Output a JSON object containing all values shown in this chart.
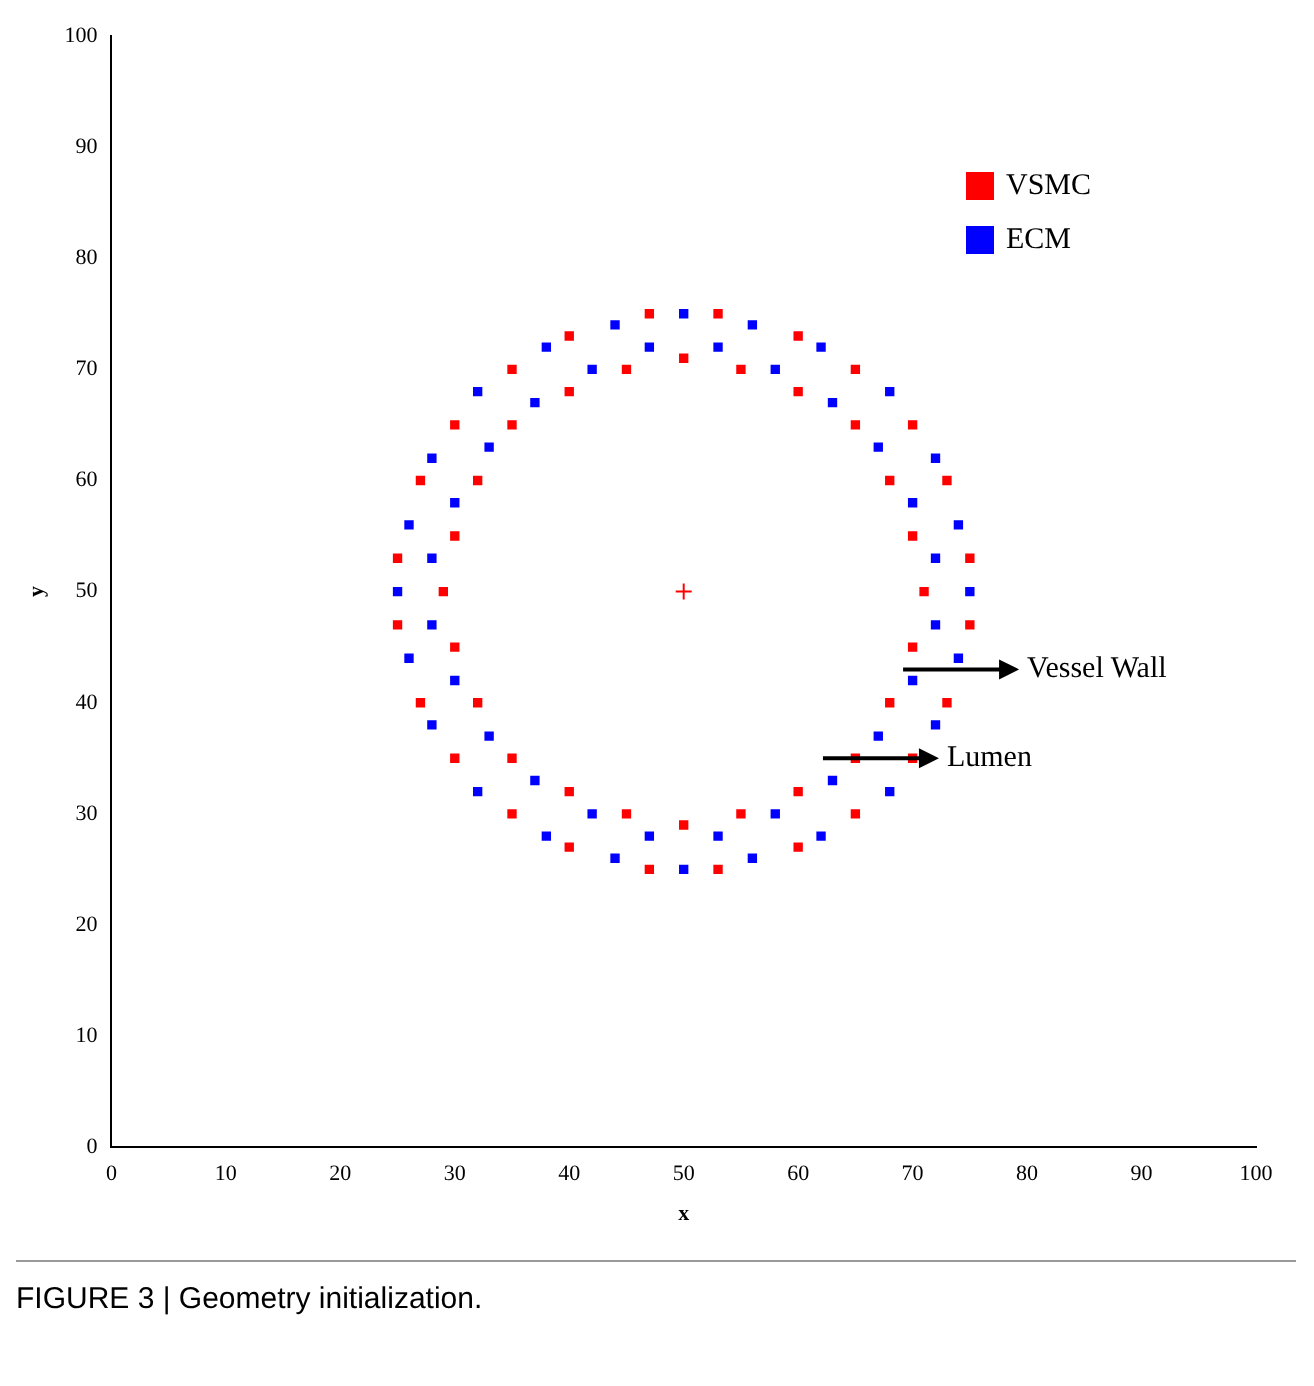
{
  "chart_data": {
    "type": "scatter",
    "xlabel": "x",
    "ylabel": "y",
    "xlim": [
      0,
      100
    ],
    "ylim": [
      0,
      100
    ],
    "xticks": [
      0,
      10,
      20,
      30,
      40,
      50,
      60,
      70,
      80,
      90,
      100
    ],
    "yticks": [
      0,
      10,
      20,
      30,
      40,
      50,
      60,
      70,
      80,
      90,
      100
    ],
    "grid": false,
    "legend": "top right",
    "marker": "square",
    "series": [
      {
        "name": "VSMC",
        "color": "#ff0000",
        "x": [
          71,
          70,
          68,
          65,
          60,
          55,
          50,
          45,
          40,
          35,
          32,
          30,
          29,
          30,
          32,
          35,
          40,
          45,
          50,
          55,
          60,
          65,
          68,
          70,
          75,
          73,
          70,
          65,
          60,
          53,
          47,
          40,
          35,
          30,
          27,
          25,
          25,
          27,
          30,
          35,
          40,
          47,
          53,
          60,
          65,
          70,
          73,
          75
        ],
        "values": [
          50,
          55,
          60,
          65,
          68,
          70,
          71,
          70,
          68,
          65,
          60,
          55,
          50,
          45,
          40,
          35,
          32,
          30,
          29,
          30,
          32,
          35,
          40,
          45,
          53,
          60,
          65,
          70,
          73,
          75,
          75,
          73,
          70,
          65,
          60,
          53,
          47,
          40,
          35,
          30,
          27,
          25,
          25,
          27,
          30,
          35,
          40,
          47
        ]
      },
      {
        "name": "ECM",
        "color": "#0000ff",
        "x": [
          75,
          74,
          72,
          68,
          62,
          56,
          50,
          44,
          38,
          32,
          28,
          26,
          25,
          26,
          28,
          32,
          38,
          44,
          50,
          56,
          62,
          68,
          72,
          74,
          72,
          70,
          67,
          63,
          58,
          53,
          47,
          42,
          37,
          33,
          30,
          28,
          28,
          30,
          33,
          37,
          42,
          47,
          53,
          58,
          63,
          67,
          70,
          72
        ],
        "values": [
          50,
          56,
          62,
          68,
          72,
          74,
          75,
          74,
          72,
          68,
          62,
          56,
          50,
          44,
          38,
          32,
          28,
          26,
          25,
          26,
          28,
          32,
          38,
          44,
          53,
          58,
          63,
          67,
          70,
          72,
          72,
          70,
          67,
          63,
          58,
          53,
          47,
          42,
          37,
          33,
          30,
          28,
          28,
          30,
          33,
          37,
          42,
          47
        ]
      },
      {
        "color": "#ff0000",
        "marker": "cross",
        "x": [
          50
        ],
        "values": [
          50
        ]
      }
    ],
    "annotations": [
      "Vessel Wall",
      "Lumen",
      "FIGURE 3 | Geometry initialization."
    ]
  }
}
